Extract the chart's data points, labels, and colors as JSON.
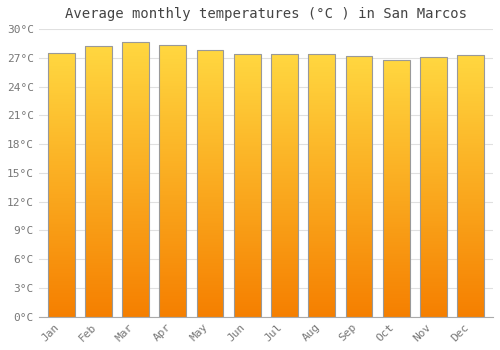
{
  "title": "Average monthly temperatures (°C ) in San Marcos",
  "months": [
    "Jan",
    "Feb",
    "Mar",
    "Apr",
    "May",
    "Jun",
    "Jul",
    "Aug",
    "Sep",
    "Oct",
    "Nov",
    "Dec"
  ],
  "temperatures": [
    27.5,
    28.2,
    28.6,
    28.3,
    27.8,
    27.4,
    27.4,
    27.4,
    27.2,
    26.8,
    27.1,
    27.3
  ],
  "ylim": [
    0,
    30
  ],
  "ytick_step": 3,
  "bar_color_center": "#FFD740",
  "bar_color_edge_top": "#FFA000",
  "bar_color_bottom": "#F57F00",
  "bar_border_color": "#B8860B",
  "background_color": "#FFFFFF",
  "grid_color": "#E0E0E0",
  "title_fontsize": 10,
  "tick_fontsize": 8
}
